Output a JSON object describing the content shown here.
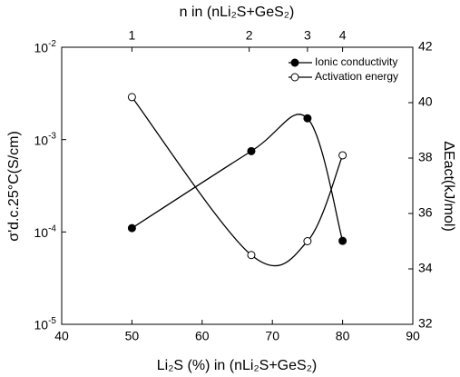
{
  "chart_data": {
    "type": "scatter",
    "x_label": "Li₂S (%) in (nLi₂S+GeS₂)",
    "x2_label": "n in (nLi₂S+GeS₂)",
    "y_label": "σ'd.c.25°C(S/cm)",
    "y2_label": "ΔEact(kJ/mol)",
    "xlim": [
      40,
      90
    ],
    "xticks": [
      40,
      50,
      60,
      70,
      80,
      90
    ],
    "x2ticks": [
      {
        "value": 50,
        "label": "1"
      },
      {
        "value": 66.7,
        "label": "2"
      },
      {
        "value": 75,
        "label": "3"
      },
      {
        "value": 80,
        "label": "4"
      }
    ],
    "ylim": [
      1e-05,
      0.01
    ],
    "y_scale": "log",
    "yticks": [
      {
        "value": 1e-05,
        "label": "10^-5"
      },
      {
        "value": 0.0001,
        "label": "10^-4"
      },
      {
        "value": 0.001,
        "label": "10^-3"
      },
      {
        "value": 0.01,
        "label": "10^-2"
      }
    ],
    "y2lim": [
      32,
      42
    ],
    "y2ticks": [
      32,
      34,
      36,
      38,
      40,
      42
    ],
    "legend": "upper right",
    "series": [
      {
        "name": "Ionic conductivity",
        "color": "#000000",
        "marker": "filled",
        "x": [
          50,
          67,
          75,
          80
        ],
        "values": [
          0.00011,
          0.00075,
          0.0017,
          8e-05
        ]
      },
      {
        "name": "Activation energy",
        "color": "#000000",
        "marker": "open",
        "axis": "y2",
        "x": [
          50,
          67,
          75,
          80
        ],
        "values": [
          40.2,
          34.5,
          35.0,
          38.1
        ]
      }
    ]
  }
}
